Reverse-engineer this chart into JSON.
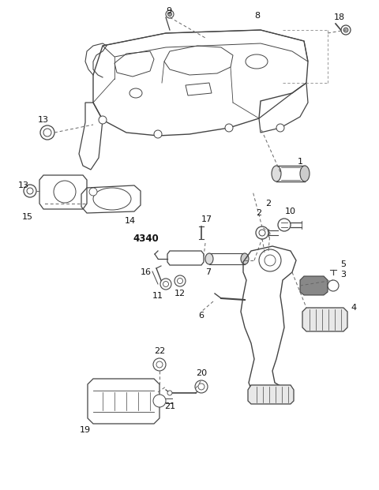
{
  "bg_color": "#ffffff",
  "line_color": "#444444",
  "fig_width": 4.8,
  "fig_height": 6.21,
  "dpi": 100,
  "lw": 0.9
}
